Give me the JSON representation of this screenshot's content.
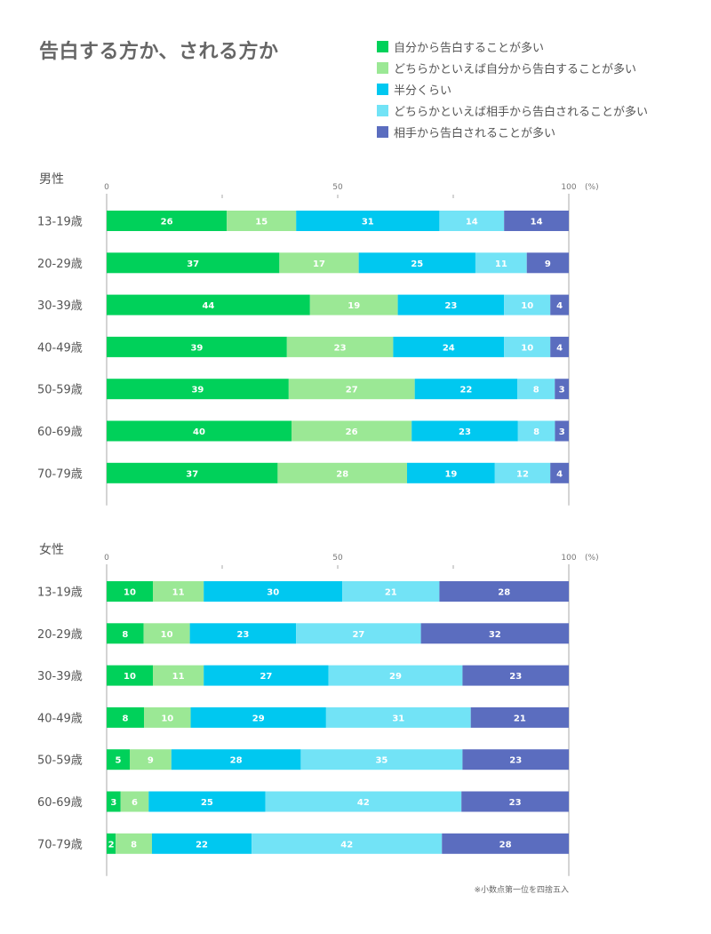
{
  "title": "告白する方か、される方か",
  "footnote": "※小数点第一位を四捨五入",
  "legend": [
    {
      "label": "自分から告白することが多い",
      "color": "#00D15A"
    },
    {
      "label": "どちらかといえば自分から告白することが多い",
      "color": "#9BE895"
    },
    {
      "label": "半分くらい",
      "color": "#00C8F0"
    },
    {
      "label": "どちらかといえば相手から告白されることが多い",
      "color": "#72E3F6"
    },
    {
      "label": "相手から告白されることが多い",
      "color": "#5B6DBF"
    }
  ],
  "chart_data": [
    {
      "type": "bar",
      "orientation": "horizontal",
      "stacked": true,
      "title": "男性",
      "xlim": [
        0,
        100
      ],
      "xticks": [
        "0",
        "50",
        "100"
      ],
      "xunit": "(%)",
      "categories": [
        "13-19歳",
        "20-29歳",
        "30-39歳",
        "40-49歳",
        "50-59歳",
        "60-69歳",
        "70-79歳"
      ],
      "series": [
        {
          "name": "自分から告白することが多い",
          "values": [
            26,
            37,
            44,
            39,
            39,
            40,
            37
          ]
        },
        {
          "name": "どちらかといえば自分から告白することが多い",
          "values": [
            15,
            17,
            19,
            23,
            27,
            26,
            28
          ]
        },
        {
          "name": "半分くらい",
          "values": [
            31,
            25,
            23,
            24,
            22,
            23,
            19
          ]
        },
        {
          "name": "どちらかといえば相手から告白されることが多い",
          "values": [
            14,
            11,
            10,
            10,
            8,
            8,
            12
          ]
        },
        {
          "name": "相手から告白されることが多い",
          "values": [
            14,
            9,
            4,
            4,
            3,
            3,
            4
          ]
        }
      ]
    },
    {
      "type": "bar",
      "orientation": "horizontal",
      "stacked": true,
      "title": "女性",
      "xlim": [
        0,
        100
      ],
      "xticks": [
        "0",
        "50",
        "100"
      ],
      "xunit": "(%)",
      "categories": [
        "13-19歳",
        "20-29歳",
        "30-39歳",
        "40-49歳",
        "50-59歳",
        "60-69歳",
        "70-79歳"
      ],
      "series": [
        {
          "name": "自分から告白することが多い",
          "values": [
            10,
            8,
            10,
            8,
            5,
            3,
            2
          ]
        },
        {
          "name": "どちらかといえば自分から告白することが多い",
          "values": [
            11,
            10,
            11,
            10,
            9,
            6,
            8
          ]
        },
        {
          "name": "半分くらい",
          "values": [
            30,
            23,
            27,
            29,
            28,
            25,
            22
          ]
        },
        {
          "name": "どちらかといえば相手から告白されることが多い",
          "values": [
            21,
            27,
            29,
            31,
            35,
            42,
            42
          ]
        },
        {
          "name": "相手から告白されることが多い",
          "values": [
            28,
            32,
            23,
            21,
            23,
            23,
            28
          ]
        }
      ]
    }
  ]
}
